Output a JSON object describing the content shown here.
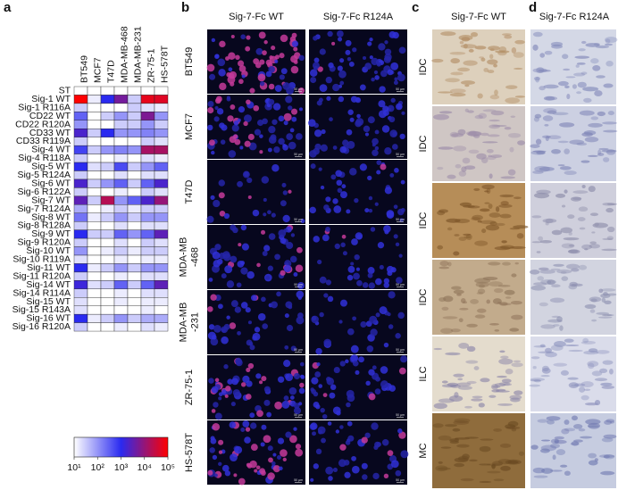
{
  "chart_data": {
    "type": "heatmap",
    "x_categories": [
      "BT549",
      "MCF7",
      "T47D",
      "MDA-MB-468",
      "MDA-MB-231",
      "ZR-75-1",
      "HS-578T"
    ],
    "y_categories": [
      "ST",
      "Sig-1 WT",
      "Sig-1 R116A",
      "CD22 WT",
      "CD22 R120A",
      "CD33 WT",
      "CD33 R119A",
      "Sig-4 WT",
      "Sig-4 R118A",
      "Sig-5 WT",
      "Sig-5 R124A",
      "Sig-6 WT",
      "Sig-6 R122A",
      "Sig-7 WT",
      "Sig-7 R124A",
      "Sig-8 WT",
      "Sig-8 R128A",
      "Sig-9 WT",
      "Sig-9 R120A",
      "Sig-10 WT",
      "Sig-10 R119A",
      "Sig-11 WT",
      "Sig-11 R120A",
      "Sig-14 WT",
      "Sig-14 R114A",
      "Sig-15 WT",
      "Sig-15 R143A",
      "Sig-16 WT",
      "Sig-16 R120A"
    ],
    "values": [
      [
        10,
        10,
        10,
        10,
        10,
        10,
        10
      ],
      [
        100000,
        15,
        1000,
        5000,
        30,
        60000,
        50000
      ],
      [
        30,
        10,
        10,
        10,
        30,
        20,
        15
      ],
      [
        300,
        10,
        30,
        100,
        30,
        6000,
        100
      ],
      [
        100,
        10,
        10,
        30,
        30,
        100,
        30
      ],
      [
        2000,
        30,
        1000,
        100,
        100,
        150,
        100
      ],
      [
        30,
        10,
        10,
        10,
        10,
        30,
        20
      ],
      [
        600,
        30,
        100,
        150,
        100,
        15000,
        15000
      ],
      [
        30,
        10,
        10,
        15,
        10,
        20,
        15
      ],
      [
        1000,
        20,
        30,
        500,
        30,
        100,
        300
      ],
      [
        30,
        10,
        10,
        20,
        10,
        20,
        20
      ],
      [
        2000,
        30,
        100,
        300,
        30,
        300,
        2000
      ],
      [
        30,
        10,
        10,
        15,
        10,
        30,
        20
      ],
      [
        3000,
        30,
        20000,
        100,
        300,
        2000,
        10000
      ],
      [
        60,
        10,
        15,
        30,
        15,
        30,
        30
      ],
      [
        200,
        15,
        30,
        100,
        30,
        100,
        100
      ],
      [
        30,
        10,
        10,
        20,
        10,
        20,
        20
      ],
      [
        1000,
        30,
        30,
        300,
        100,
        300,
        3000
      ],
      [
        30,
        10,
        10,
        20,
        10,
        30,
        20
      ],
      [
        100,
        10,
        15,
        30,
        15,
        30,
        30
      ],
      [
        20,
        10,
        10,
        15,
        10,
        15,
        15
      ],
      [
        1000,
        15,
        30,
        100,
        30,
        100,
        100
      ],
      [
        30,
        10,
        10,
        15,
        10,
        20,
        20
      ],
      [
        1500,
        20,
        30,
        300,
        30,
        300,
        3000
      ],
      [
        30,
        10,
        10,
        15,
        10,
        20,
        20
      ],
      [
        20,
        10,
        10,
        15,
        10,
        15,
        15
      ],
      [
        20,
        10,
        10,
        10,
        10,
        15,
        10
      ],
      [
        1000,
        15,
        30,
        100,
        30,
        60,
        60
      ],
      [
        30,
        10,
        10,
        15,
        10,
        20,
        15
      ]
    ],
    "log_scale": true,
    "clim": [
      10,
      100000
    ],
    "colorscale": [
      "#ffffff",
      "#2a2af0",
      "#ff0000"
    ],
    "cticks": [
      {
        "value": 10,
        "label": "10¹"
      },
      {
        "value": 100,
        "label": "10²"
      },
      {
        "value": 1000,
        "label": "10³"
      },
      {
        "value": 10000,
        "label": "10⁴"
      },
      {
        "value": 100000,
        "label": "10⁵"
      }
    ]
  },
  "panel_a": {
    "label": "a"
  },
  "panel_b": {
    "label": "b",
    "columns": [
      "Sig-7-Fc WT",
      "Sig-7-Fc R124A"
    ],
    "rows": [
      [
        "BT549"
      ],
      [
        "MCF7"
      ],
      [
        "T47D"
      ],
      [
        "MDA-MB",
        "-468"
      ],
      [
        "MDA-MB",
        "-231"
      ],
      [
        "ZR-75-1"
      ],
      [
        "HS-578T"
      ]
    ],
    "scale_bar": "50 µm"
  },
  "panel_c": {
    "label": "c",
    "column": "Sig-7-Fc WT",
    "rows": [
      "IDC",
      "IDC",
      "IDC",
      "IDC",
      "ILC",
      "MC"
    ]
  },
  "panel_d": {
    "label": "d",
    "column": "Sig-7-Fc R124A"
  }
}
